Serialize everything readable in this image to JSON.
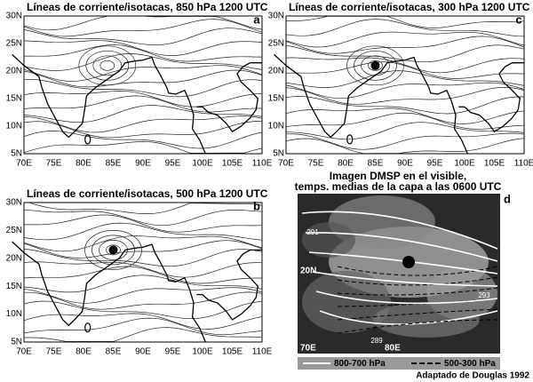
{
  "panels": [
    {
      "title": "Líneas de corriente/isotacas, 850 hPa 1200 UTC",
      "letter": "a",
      "yticks": [
        "30N",
        "25N",
        "20N",
        "15N",
        "10N",
        "5N"
      ],
      "xticks": [
        "70E",
        "75E",
        "80E",
        "85E",
        "90E",
        "95E",
        "100E",
        "105E",
        "110E"
      ]
    },
    {
      "title": "Líneas de corriente/isotacas, 300 hPa 1200 UTC",
      "letter": "c",
      "yticks": [
        "30N",
        "25N",
        "20N",
        "15N",
        "10N",
        "5N"
      ],
      "xticks": [
        "70E",
        "75E",
        "80E",
        "85E",
        "90E",
        "95E",
        "100E",
        "105E",
        "110E"
      ]
    },
    {
      "title": "Líneas de corriente/isotacas, 500 hPa 1200 UTC",
      "letter": "b",
      "yticks": [
        "30N",
        "25N",
        "20N",
        "15N",
        "10N",
        "5N"
      ],
      "xticks": [
        "70E",
        "75E",
        "80E",
        "85E",
        "90E",
        "95E",
        "100E",
        "105E",
        "110E"
      ]
    }
  ],
  "satellite": {
    "title_lines": [
      "Imagen DMSP en el visible,",
      "temps. medias de la capa a las 0600 UTC"
    ],
    "letter": "d",
    "lat_label": "20N",
    "lon_labels": [
      "70E",
      "80E"
    ],
    "contour_labels": [
      "291",
      "293",
      "289"
    ],
    "legend": [
      "800-700 hPa",
      "500-300 hPa"
    ]
  },
  "credit": "Adaptado de Douglas 1992"
}
